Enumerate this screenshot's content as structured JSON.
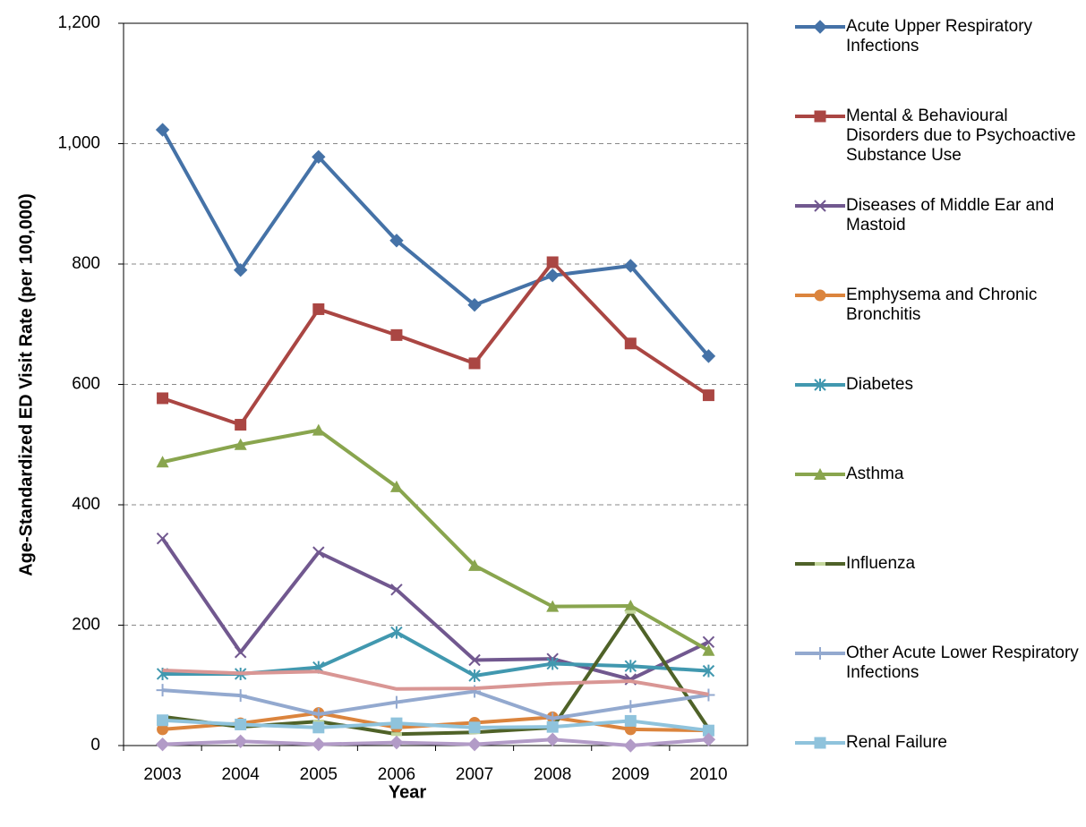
{
  "chart_data": {
    "type": "line",
    "x_label": "Year",
    "y_label": "Age-Standardized ED Visit Rate (per 100,000)",
    "categories": [
      "2003",
      "2004",
      "2005",
      "2006",
      "2007",
      "2008",
      "2009",
      "2010"
    ],
    "ylim": [
      0,
      1200
    ],
    "yticks": [
      0,
      200,
      400,
      600,
      800,
      {
        "value": 1000,
        "label": "1,000"
      },
      {
        "value": 1200,
        "label": "1,200"
      }
    ],
    "grid": true,
    "legend": "right",
    "series": [
      {
        "name": "Acute Upper Respiratory Infections",
        "color": "#4572a7",
        "marker": "diamond",
        "values": [
          1023,
          790,
          978,
          839,
          732,
          781,
          797,
          647
        ]
      },
      {
        "name": "Mental & Behavioural Disorders due to Psychoactive Substance Use",
        "color": "#aa4643",
        "marker": "square",
        "values": [
          577,
          533,
          725,
          682,
          635,
          803,
          668,
          582
        ]
      },
      {
        "name": "Diseases of Middle Ear and Mastoid",
        "color": "#71588f",
        "marker": "x",
        "values": [
          344,
          155,
          321,
          259,
          142,
          144,
          110,
          172
        ]
      },
      {
        "name": "Emphysema and Chronic Bronchitis",
        "color": "#db843d",
        "marker": "circle",
        "values": [
          27,
          37,
          54,
          30,
          38,
          47,
          27,
          25
        ]
      },
      {
        "name": "Diabetes",
        "color": "#4198af",
        "marker": "star",
        "values": [
          119,
          119,
          130,
          188,
          116,
          136,
          132,
          124
        ]
      },
      {
        "name": "Asthma",
        "color": "#89a54e",
        "marker": "triangle",
        "values": [
          471,
          500,
          524,
          430,
          299,
          231,
          232,
          158
        ]
      },
      {
        "name": "Influenza",
        "color": "#4f6228",
        "marker": "dash",
        "values": [
          48,
          31,
          40,
          19,
          22,
          30,
          222,
          28
        ]
      },
      {
        "name": "Other Acute Lower Respiratory Infections",
        "color": "#93a9cf",
        "marker": "plus",
        "values": [
          92,
          83,
          52,
          72,
          90,
          45,
          65,
          84
        ]
      },
      {
        "name": "Renal Failure",
        "color": "#8fc3dc",
        "marker": "square",
        "values": [
          42,
          35,
          30,
          37,
          30,
          31,
          41,
          25
        ]
      },
      {
        "color": "#d99694",
        "marker": "none",
        "values": [
          125,
          120,
          123,
          94,
          95,
          103,
          107,
          85
        ]
      },
      {
        "color": "#b29bc7",
        "marker": "diamond",
        "values": [
          2,
          7,
          2,
          5,
          2,
          10,
          0,
          10
        ]
      }
    ]
  }
}
